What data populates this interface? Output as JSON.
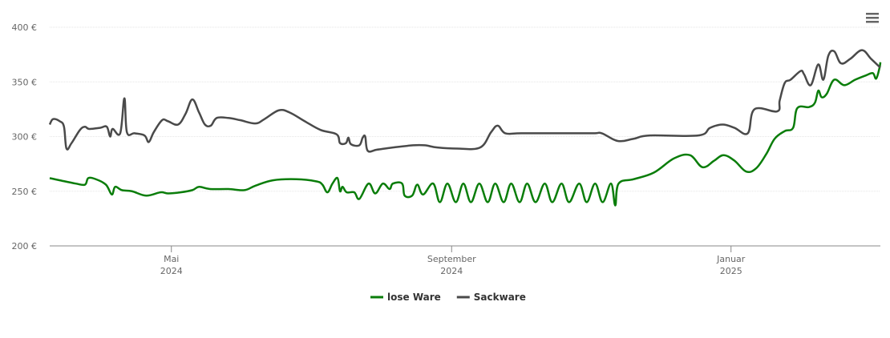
{
  "chart_data": {
    "type": "line",
    "xlim": [
      2024.188,
      2025.178
    ],
    "xticks": [
      {
        "value": 2024.333,
        "label": "Mai 2024"
      },
      {
        "value": 2024.667,
        "label": "September 2024"
      },
      {
        "value": 2025.0,
        "label": "Januar 2025"
      }
    ],
    "ylim": [
      200,
      400
    ],
    "yticks": [
      {
        "value": 200,
        "label": "200 €"
      },
      {
        "value": 250,
        "label": "250 €"
      },
      {
        "value": 300,
        "label": "300 €"
      },
      {
        "value": 350,
        "label": "350 €"
      },
      {
        "value": 400,
        "label": "400 €"
      }
    ],
    "grid": true,
    "legend": "bottom",
    "series": [
      {
        "name": "lose Ware",
        "color": "#0a7d0a",
        "x": [
          2024.188,
          2024.2,
          2024.219,
          2024.23,
          2024.234,
          2024.243,
          2024.255,
          2024.262,
          2024.266,
          2024.274,
          2024.286,
          2024.303,
          2024.32,
          2024.329,
          2024.344,
          2024.358,
          2024.366,
          2024.379,
          2024.401,
          2024.42,
          2024.433,
          2024.454,
          2024.482,
          2024.506,
          2024.513,
          2024.519,
          2024.525,
          2024.531,
          2024.534,
          2024.537,
          2024.542,
          2024.551,
          2024.557,
          2024.568,
          2024.576,
          2024.585,
          2024.593,
          2024.597,
          2024.608,
          2024.611,
          2024.62,
          2024.626,
          2024.633,
          2024.645,
          2024.653,
          2024.662,
          2024.672,
          2024.681,
          2024.69,
          2024.7,
          2024.71,
          2024.719,
          2024.729,
          2024.738,
          2024.748,
          2024.757,
          2024.767,
          2024.778,
          2024.787,
          2024.798,
          2024.807,
          2024.819,
          2024.828,
          2024.838,
          2024.847,
          2024.857,
          2024.862,
          2024.866,
          2024.884,
          2024.908,
          2024.932,
          2024.951,
          2024.966,
          2024.98,
          2024.991,
          2025.004,
          2025.018,
          2025.03,
          2025.042,
          2025.052,
          2025.064,
          2025.074,
          2025.079,
          2025.093,
          2025.1,
          2025.104,
          2025.108,
          2025.114,
          2025.123,
          2025.135,
          2025.148,
          2025.161,
          2025.169,
          2025.173,
          2025.177,
          2025.178
        ],
        "values": [
          262,
          260,
          257,
          256,
          262,
          261,
          256,
          247,
          254,
          251,
          250,
          246,
          249,
          248,
          249,
          251,
          254,
          252,
          252,
          251,
          255,
          260,
          261,
          259,
          256,
          249,
          257,
          262,
          250,
          254,
          249,
          249,
          243,
          257,
          248,
          257,
          252,
          257,
          257,
          246,
          246,
          256,
          247,
          257,
          240,
          257,
          240,
          257,
          240,
          257,
          240,
          257,
          240,
          257,
          240,
          257,
          240,
          257,
          240,
          257,
          240,
          257,
          240,
          257,
          240,
          257,
          237,
          257,
          261,
          267,
          280,
          283,
          272,
          278,
          283,
          278,
          268,
          271,
          284,
          298,
          305,
          308,
          326,
          327,
          331,
          342,
          336,
          339,
          352,
          347,
          352,
          356,
          358,
          353,
          363,
          368
        ]
      },
      {
        "name": "Sackware",
        "color": "#4a4a4a",
        "x": [
          2024.188,
          2024.192,
          2024.2,
          2024.205,
          2024.208,
          2024.214,
          2024.224,
          2024.23,
          2024.235,
          2024.248,
          2024.256,
          2024.26,
          2024.263,
          2024.272,
          2024.277,
          2024.28,
          2024.289,
          2024.301,
          2024.306,
          2024.312,
          2024.322,
          2024.329,
          2024.341,
          2024.35,
          2024.358,
          2024.366,
          2024.373,
          2024.38,
          2024.387,
          2024.401,
          2024.415,
          2024.433,
          2024.444,
          2024.461,
          2024.474,
          2024.492,
          2024.511,
          2024.53,
          2024.534,
          2024.541,
          2024.544,
          2024.547,
          2024.557,
          2024.561,
          2024.564,
          2024.567,
          2024.578,
          2024.597,
          2024.621,
          2024.635,
          2024.65,
          2024.674,
          2024.701,
          2024.714,
          2024.722,
          2024.731,
          2024.75,
          2024.798,
          2024.836,
          2024.846,
          2024.865,
          2024.884,
          2024.903,
          2024.961,
          2024.975,
          2024.99,
          2025.004,
          2025.02,
          2025.028,
          2025.055,
          2025.058,
          2025.064,
          2025.071,
          2025.083,
          2025.087,
          2025.095,
          2025.104,
          2025.11,
          2025.116,
          2025.123,
          2025.131,
          2025.142,
          2025.156,
          2025.167,
          2025.178
        ],
        "values": [
          311,
          316,
          314,
          309,
          289,
          294,
          306,
          309,
          307,
          308,
          309,
          300,
          307,
          303,
          335,
          304,
          303,
          301,
          295,
          304,
          315,
          314,
          311,
          321,
          334,
          322,
          311,
          310,
          317,
          317,
          315,
          312,
          316,
          324,
          322,
          314,
          306,
          302,
          294,
          294,
          299,
          293,
          292,
          299,
          300,
          287,
          288,
          290,
          292,
          292,
          290,
          289,
          290,
          304,
          310,
          303,
          303,
          303,
          303,
          303,
          296,
          298,
          301,
          301,
          308,
          311,
          308,
          303,
          325,
          323,
          333,
          349,
          352,
          360,
          357,
          347,
          366,
          352,
          374,
          378,
          367,
          371,
          379,
          371,
          363
        ]
      }
    ]
  }
}
